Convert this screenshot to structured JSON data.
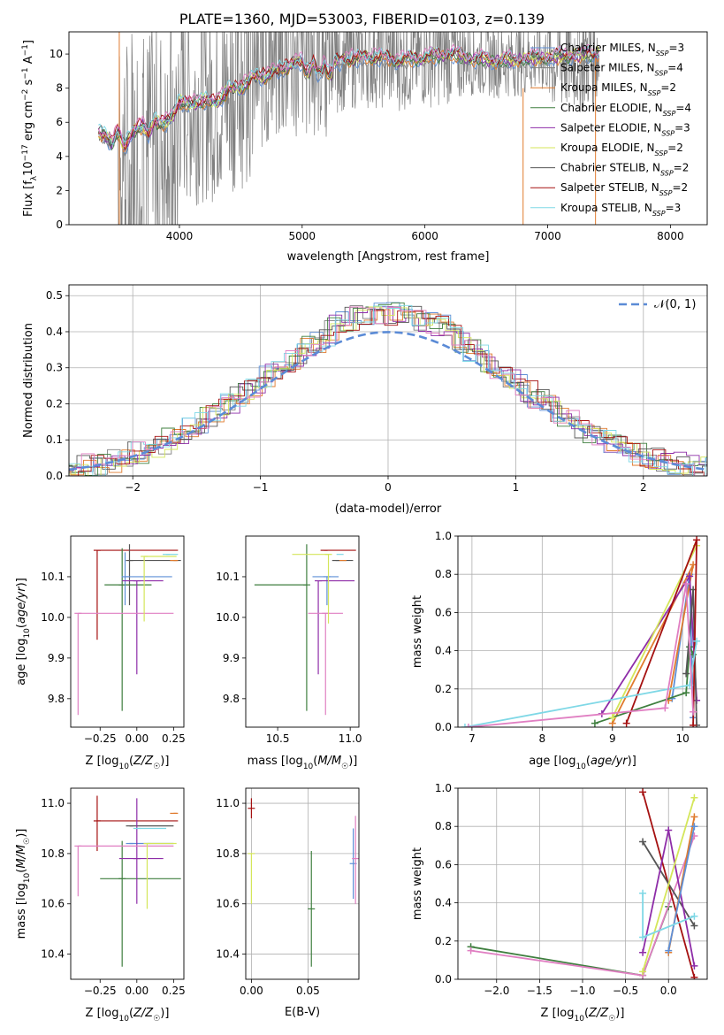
{
  "figure_title": "PLATE=1360, MJD=53003, FIBERID=0103, z=0.139",
  "colors": {
    "chabrier_miles": "#5e8fd6",
    "salpeter_miles": "#7f7f7f",
    "kroupa_miles": "#e07b2e",
    "chabrier_elodie": "#3f7f3f",
    "salpeter_elodie": "#8e2da8",
    "kroupa_elodie": "#d4e65a",
    "chabrier_stelib": "#555555",
    "salpeter_stelib": "#a51111",
    "kroupa_stelib": "#7fd8e6",
    "pink": "#e07fc2",
    "normal_dashed": "#5b8bd6",
    "data": "#7f7f7f"
  },
  "chart_data": [
    {
      "id": "spectrum",
      "type": "line",
      "title": "PLATE=1360, MJD=53003, FIBERID=0103, z=0.139",
      "xlabel": "wavelength [Angstrom, rest frame]",
      "ylabel": "Flux [f_λ 10^-17 erg cm^-2 s^-1 A^-1]",
      "xlim": [
        3100,
        8300
      ],
      "ylim": [
        0,
        11.3
      ],
      "xticks": [
        4000,
        5000,
        6000,
        7000,
        8000
      ],
      "yticks": [
        0,
        2,
        4,
        6,
        8,
        10
      ],
      "legend_position": "top-right",
      "series": [
        {
          "name": "Chabrier MILES, N_SSP=3",
          "color": "#5e8fd6"
        },
        {
          "name": "Salpeter MILES, N_SSP=4",
          "color": "#7f7f7f"
        },
        {
          "name": "Kroupa MILES, N_SSP=2",
          "color": "#e07b2e"
        },
        {
          "name": "Chabrier ELODIE, N_SSP=4",
          "color": "#3f7f3f"
        },
        {
          "name": "Salpeter ELODIE, N_SSP=3",
          "color": "#8e2da8"
        },
        {
          "name": "Kroupa ELODIE, N_SSP=2",
          "color": "#d4e65a"
        },
        {
          "name": "Chabrier STELIB, N_SSP=2",
          "color": "#555555"
        },
        {
          "name": "Salpeter STELIB, N_SSP=2",
          "color": "#a51111"
        },
        {
          "name": "Kroupa STELIB, N_SSP=3",
          "color": "#7fd8e6"
        }
      ],
      "model_curve": {
        "x": [
          3340,
          3400,
          3450,
          3500,
          3550,
          3600,
          3650,
          3700,
          3750,
          3800,
          3850,
          3900,
          3950,
          4000,
          4100,
          4200,
          4300,
          4400,
          4500,
          4600,
          4700,
          4800,
          4900,
          5000,
          5200,
          5400,
          5600,
          5800,
          6000,
          6200,
          6400,
          6600,
          6800,
          7000,
          7200,
          7400
        ],
        "y": [
          5.4,
          5.2,
          4.7,
          5.5,
          4.5,
          5.2,
          5.6,
          5.8,
          5.3,
          6.1,
          5.9,
          6.0,
          6.4,
          7.2,
          7.0,
          7.3,
          7.1,
          7.9,
          8.0,
          8.6,
          8.7,
          9.0,
          9.3,
          9.6,
          9.4,
          9.7,
          9.8,
          9.6,
          9.8,
          10.0,
          9.7,
          9.6,
          9.7,
          9.8,
          9.9,
          10.0
        ]
      }
    },
    {
      "id": "residuals",
      "type": "histogram",
      "xlabel": "(data-model)/error",
      "ylabel": "Normed distribution",
      "xlim": [
        -2.5,
        2.5
      ],
      "ylim": [
        0,
        0.53
      ],
      "xticks": [
        -2,
        -1,
        0,
        1,
        2
      ],
      "yticks": [
        0.0,
        0.1,
        0.2,
        0.3,
        0.4,
        0.5
      ],
      "grid": true,
      "legend_position": "top-right",
      "normal_label": "𝒩(0, 1)",
      "bin_edges_start": -2.5,
      "bin_width": 0.1
    },
    {
      "id": "age_vs_Z",
      "type": "errorbar",
      "xlabel": "Z [log10(Z/Z☉)]",
      "ylabel": "age  [log10(age/yr)]",
      "xlim": [
        -0.45,
        0.32
      ],
      "ylim": [
        9.73,
        10.2
      ],
      "xticks": [
        -0.25,
        0.0,
        0.25
      ],
      "yticks": [
        9.8,
        9.9,
        10.0,
        10.1
      ],
      "points": [
        {
          "color": "#a51111",
          "x": -0.27,
          "xerr": [
            0.0,
            0.55
          ],
          "y": 10.165,
          "yerr": [
            0.22,
            0.0
          ]
        },
        {
          "color": "#555555",
          "x": -0.05,
          "xerr": [
            0.0,
            0.35
          ],
          "y": 10.14,
          "yerr": [
            0.11,
            0.04
          ]
        },
        {
          "color": "#3f7f3f",
          "x": -0.1,
          "xerr": [
            0.12,
            0.2
          ],
          "y": 10.08,
          "yerr": [
            0.31,
            0.09
          ]
        },
        {
          "color": "#5e8fd6",
          "x": -0.08,
          "xerr": [
            0.0,
            0.32
          ],
          "y": 10.1,
          "yerr": [
            0.07,
            0.06
          ]
        },
        {
          "color": "#8e2da8",
          "x": 0.0,
          "xerr": [
            0.1,
            0.18
          ],
          "y": 10.09,
          "yerr": [
            0.23,
            0.0
          ]
        },
        {
          "color": "#e07fc2",
          "x": -0.4,
          "xerr": [
            0.0,
            0.65
          ],
          "y": 10.01,
          "yerr": [
            0.25,
            0.0
          ]
        },
        {
          "color": "#d4e65a",
          "x": 0.05,
          "xerr": [
            0.0,
            0.22
          ],
          "y": 10.15,
          "yerr": [
            0.16,
            0.0
          ]
        },
        {
          "color": "#e07b2e",
          "x": 0.25,
          "xerr": [
            0.0,
            0.03
          ],
          "y": 10.14,
          "yerr": [
            0.0,
            0.0
          ]
        },
        {
          "color": "#7fd8e6",
          "x": 0.2,
          "xerr": [
            0.0,
            0.08
          ],
          "y": 10.155,
          "yerr": [
            0.0,
            0.0
          ]
        }
      ]
    },
    {
      "id": "age_vs_mass",
      "type": "errorbar",
      "xlabel": "mass [log10(M/M☉)]",
      "ylabel": "",
      "xlim": [
        10.28,
        11.06
      ],
      "ylim": [
        9.73,
        10.2
      ],
      "xticks": [
        10.5,
        11.0
      ],
      "yticks": [
        9.8,
        9.9,
        10.0,
        10.1
      ],
      "points": [
        {
          "color": "#a51111",
          "x": 10.82,
          "xerr": [
            0.0,
            0.22
          ],
          "y": 10.165,
          "yerr": [
            0.0,
            0.0
          ]
        },
        {
          "color": "#555555",
          "x": 10.9,
          "xerr": [
            0.0,
            0.12
          ],
          "y": 10.14,
          "yerr": [
            0.0,
            0.0
          ]
        },
        {
          "color": "#3f7f3f",
          "x": 10.7,
          "xerr": [
            0.36,
            0.0
          ],
          "y": 10.08,
          "yerr": [
            0.31,
            0.1
          ]
        },
        {
          "color": "#5e8fd6",
          "x": 10.84,
          "xerr": [
            0.1,
            0.08
          ],
          "y": 10.1,
          "yerr": [
            0.07,
            0.0
          ]
        },
        {
          "color": "#8e2da8",
          "x": 10.78,
          "xerr": [
            0.0,
            0.25
          ],
          "y": 10.09,
          "yerr": [
            0.23,
            0.0
          ]
        },
        {
          "color": "#e07fc2",
          "x": 10.83,
          "xerr": [
            0.12,
            0.12
          ],
          "y": 10.01,
          "yerr": [
            0.25,
            0.0
          ]
        },
        {
          "color": "#d4e65a",
          "x": 10.85,
          "xerr": [
            0.25,
            0.0
          ],
          "y": 10.155,
          "yerr": [
            0.17,
            0.0
          ]
        },
        {
          "color": "#e07b2e",
          "x": 10.95,
          "xerr": [
            0.0,
            0.0
          ],
          "y": 10.14,
          "yerr": [
            0.0,
            0.0
          ]
        },
        {
          "color": "#7fd8e6",
          "x": 10.93,
          "xerr": [
            0.0,
            0.0
          ],
          "y": 10.155,
          "yerr": [
            0.0,
            0.0
          ]
        }
      ]
    },
    {
      "id": "massweight_vs_age",
      "type": "line",
      "xlabel": "age  [log10(age/yr)]",
      "ylabel": "mass weight",
      "xlim": [
        6.8,
        10.35
      ],
      "ylim": [
        0.0,
        1.0
      ],
      "xticks": [
        7,
        8,
        9,
        10
      ],
      "yticks": [
        0.0,
        0.2,
        0.4,
        0.6,
        0.8,
        1.0
      ],
      "grid": true,
      "series": [
        {
          "color": "#5e8fd6",
          "x": [
            9.85,
            10.1,
            10.15
          ],
          "y": [
            0.15,
            0.8,
            0.05
          ]
        },
        {
          "color": "#e07b2e",
          "x": [
            9.0,
            10.15,
            9.8
          ],
          "y": [
            0.02,
            0.85,
            0.14
          ]
        },
        {
          "color": "#3f7f3f",
          "x": [
            8.75,
            10.05,
            10.1,
            10.15
          ],
          "y": [
            0.02,
            0.18,
            0.42,
            0.38
          ]
        },
        {
          "color": "#8e2da8",
          "x": [
            8.85,
            10.1,
            10.2
          ],
          "y": [
            0.07,
            0.79,
            0.14
          ]
        },
        {
          "color": "#d4e65a",
          "x": [
            9.0,
            10.2
          ],
          "y": [
            0.05,
            0.95
          ]
        },
        {
          "color": "#555555",
          "x": [
            10.05,
            10.15,
            10.2
          ],
          "y": [
            0.28,
            0.72,
            0.01
          ]
        },
        {
          "color": "#a51111",
          "x": [
            9.2,
            10.2,
            10.15
          ],
          "y": [
            0.02,
            0.98,
            0.01
          ]
        },
        {
          "color": "#7fd8e6",
          "x": [
            6.9,
            10.1,
            10.2
          ],
          "y": [
            0.0,
            0.22,
            0.45
          ]
        },
        {
          "color": "#e07fc2",
          "x": [
            6.95,
            9.75,
            10.05,
            10.15
          ],
          "y": [
            0.0,
            0.1,
            0.75,
            0.08
          ]
        }
      ]
    },
    {
      "id": "mass_vs_Z",
      "type": "errorbar",
      "xlabel": "Z [log10(Z/Z☉)]",
      "ylabel": "mass [log10(M/M☉)]",
      "xlim": [
        -0.45,
        0.32
      ],
      "ylim": [
        10.3,
        11.06
      ],
      "xticks": [
        -0.25,
        0.0,
        0.25
      ],
      "yticks": [
        10.4,
        10.6,
        10.8,
        11.0
      ],
      "points": [
        {
          "color": "#a51111",
          "x": -0.27,
          "xerr": [
            0.0,
            0.55
          ],
          "y": 10.93,
          "yerr": [
            0.12,
            0.1
          ]
        },
        {
          "color": "#555555",
          "x": -0.05,
          "xerr": [
            0.0,
            0.3
          ],
          "y": 10.91,
          "yerr": [
            0.0,
            0.0
          ]
        },
        {
          "color": "#3f7f3f",
          "x": -0.1,
          "xerr": [
            0.15,
            0.4
          ],
          "y": 10.7,
          "yerr": [
            0.35,
            0.15
          ]
        },
        {
          "color": "#5e8fd6",
          "x": -0.05,
          "xerr": [
            0.0,
            0.3
          ],
          "y": 10.84,
          "yerr": [
            0.0,
            0.0
          ]
        },
        {
          "color": "#8e2da8",
          "x": 0.0,
          "xerr": [
            0.12,
            0.18
          ],
          "y": 10.78,
          "yerr": [
            0.18,
            0.24
          ]
        },
        {
          "color": "#e07fc2",
          "x": -0.4,
          "xerr": [
            0.0,
            0.65
          ],
          "y": 10.83,
          "yerr": [
            0.2,
            0.0
          ]
        },
        {
          "color": "#d4e65a",
          "x": 0.07,
          "xerr": [
            0.0,
            0.2
          ],
          "y": 10.84,
          "yerr": [
            0.26,
            0.0
          ]
        },
        {
          "color": "#e07b2e",
          "x": 0.25,
          "xerr": [
            0.0,
            0.03
          ],
          "y": 10.96,
          "yerr": [
            0.0,
            0.0
          ]
        },
        {
          "color": "#7fd8e6",
          "x": 0.0,
          "xerr": [
            0.0,
            0.2
          ],
          "y": 10.9,
          "yerr": [
            0.0,
            0.0
          ]
        }
      ]
    },
    {
      "id": "mass_vs_ebv",
      "type": "errorbar",
      "xlabel": "E(B-V)",
      "ylabel": "",
      "xlim": [
        -0.005,
        0.095
      ],
      "ylim": [
        10.3,
        11.06
      ],
      "xticks": [
        0.0,
        0.05
      ],
      "xtick_labels": [
        "0.00",
        "0.05"
      ],
      "yticks": [
        10.4,
        10.6,
        10.8,
        11.0
      ],
      "grid": true,
      "points": [
        {
          "color": "#a51111",
          "x": 0.0,
          "y": 10.98,
          "yerr": [
            0.04,
            0.04
          ]
        },
        {
          "color": "#d4e65a",
          "x": 0.0,
          "y": 10.8,
          "yerr": [
            0.2,
            0.0
          ]
        },
        {
          "color": "#3f7f3f",
          "x": 0.053,
          "y": 10.58,
          "yerr": [
            0.23,
            0.23
          ]
        },
        {
          "color": "#5e8fd6",
          "x": 0.09,
          "y": 10.76,
          "yerr": [
            0.14,
            0.14
          ]
        },
        {
          "color": "#e07fc2",
          "x": 0.092,
          "y": 10.78,
          "yerr": [
            0.18,
            0.17
          ]
        }
      ]
    },
    {
      "id": "massweight_vs_Z",
      "type": "line",
      "xlabel": "Z [log10(Z/Z☉)]",
      "ylabel": "mass weight",
      "xlim": [
        -2.45,
        0.45
      ],
      "ylim": [
        0.0,
        1.0
      ],
      "xticks": [
        -2.0,
        -1.5,
        -1.0,
        -0.5,
        0.0
      ],
      "yticks": [
        0.0,
        0.2,
        0.4,
        0.6,
        0.8,
        1.0
      ],
      "grid": true,
      "series": [
        {
          "color": "#3f7f3f",
          "x": [
            -2.3,
            -0.3,
            0.0
          ],
          "y": [
            0.17,
            0.02,
            0.38
          ]
        },
        {
          "color": "#e07fc2",
          "x": [
            -2.3,
            -0.3,
            0.3
          ],
          "y": [
            0.15,
            0.02,
            0.75
          ]
        },
        {
          "color": "#a51111",
          "x": [
            -0.3,
            0.3
          ],
          "y": [
            0.98,
            0.01
          ]
        },
        {
          "color": "#555555",
          "x": [
            -0.3,
            0.3
          ],
          "y": [
            0.72,
            0.28
          ]
        },
        {
          "color": "#8e2da8",
          "x": [
            -0.3,
            0.0,
            0.3
          ],
          "y": [
            0.14,
            0.78,
            0.07
          ]
        },
        {
          "color": "#d4e65a",
          "x": [
            -0.3,
            0.3
          ],
          "y": [
            0.04,
            0.95
          ]
        },
        {
          "color": "#e07b2e",
          "x": [
            0.0,
            0.3
          ],
          "y": [
            0.14,
            0.85
          ]
        },
        {
          "color": "#5e8fd6",
          "x": [
            0.0,
            0.3
          ],
          "y": [
            0.15,
            0.8
          ]
        },
        {
          "color": "#7fd8e6",
          "x": [
            -0.3,
            -0.3,
            0.3
          ],
          "y": [
            0.45,
            0.22,
            0.33
          ]
        }
      ]
    }
  ]
}
